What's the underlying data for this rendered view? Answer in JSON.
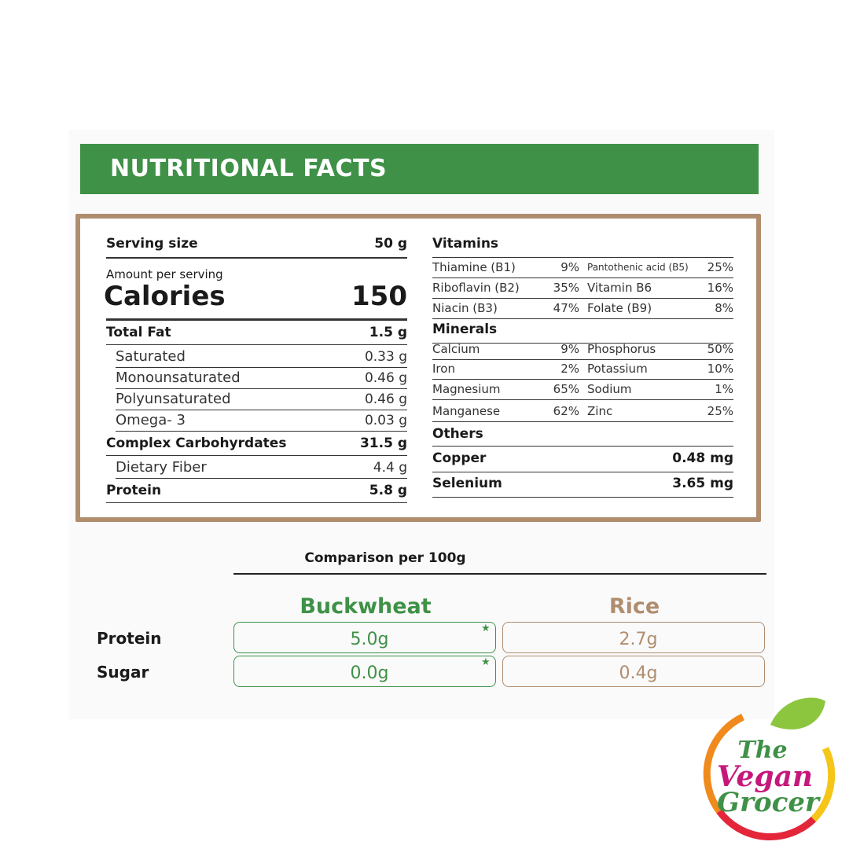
{
  "header": {
    "title": "NUTRITIONAL FACTS"
  },
  "facts": {
    "serving": {
      "label": "Serving size",
      "value": "50 g"
    },
    "amount_label": "Amount per serving",
    "calories": {
      "label": "Calories",
      "value": "150"
    },
    "items": [
      {
        "label": "Total Fat",
        "value": "1.5 g",
        "sub": [
          {
            "label": "Saturated",
            "value": "0.33 g"
          },
          {
            "label": "Monounsaturated",
            "value": "0.46 g"
          },
          {
            "label": "Polyunsaturated",
            "value": "0.46 g"
          },
          {
            "label": "Omega- 3",
            "value": "0.03 g"
          }
        ]
      },
      {
        "label": "Complex Carbohyrdates",
        "value": "31.5 g",
        "sub": [
          {
            "label": "Dietary Fiber",
            "value": "4.4 g"
          }
        ]
      },
      {
        "label": "Protein",
        "value": "5.8 g",
        "sub": []
      }
    ]
  },
  "vitamins": {
    "title": "Vitamins",
    "rows": [
      [
        "Thiamine (B1)",
        "9%",
        "Pantothenic acid (B5)",
        "25%"
      ],
      [
        "Riboflavin (B2)",
        "35%",
        "Vitamin B6",
        "16%"
      ],
      [
        "Niacin (B3)",
        "47%",
        "Folate (B9)",
        "8%"
      ]
    ]
  },
  "minerals": {
    "title": "Minerals",
    "rows": [
      [
        "Calcium",
        "9%",
        "Phosphorus",
        "50%"
      ],
      [
        "Iron",
        "2%",
        "Potassium",
        "10%"
      ],
      [
        "Magnesium",
        "65%",
        "Sodium",
        "1%"
      ],
      [
        "Manganese",
        "62%",
        "Zinc",
        "25%"
      ]
    ]
  },
  "others": {
    "title": "Others",
    "rows": [
      [
        "Copper",
        "0.48 mg"
      ],
      [
        "Selenium",
        "3.65 mg"
      ]
    ]
  },
  "comparison": {
    "title": "Comparison per 100g",
    "columns": [
      "Buckwheat",
      "Rice"
    ],
    "rows": [
      {
        "label": "Protein",
        "values": [
          "5.0g",
          "2.7g"
        ]
      },
      {
        "label": "Sugar",
        "values": [
          "0.0g",
          "0.4g"
        ]
      }
    ]
  },
  "logo": {
    "lines": [
      "The",
      "Vegan",
      "Grocer"
    ]
  }
}
